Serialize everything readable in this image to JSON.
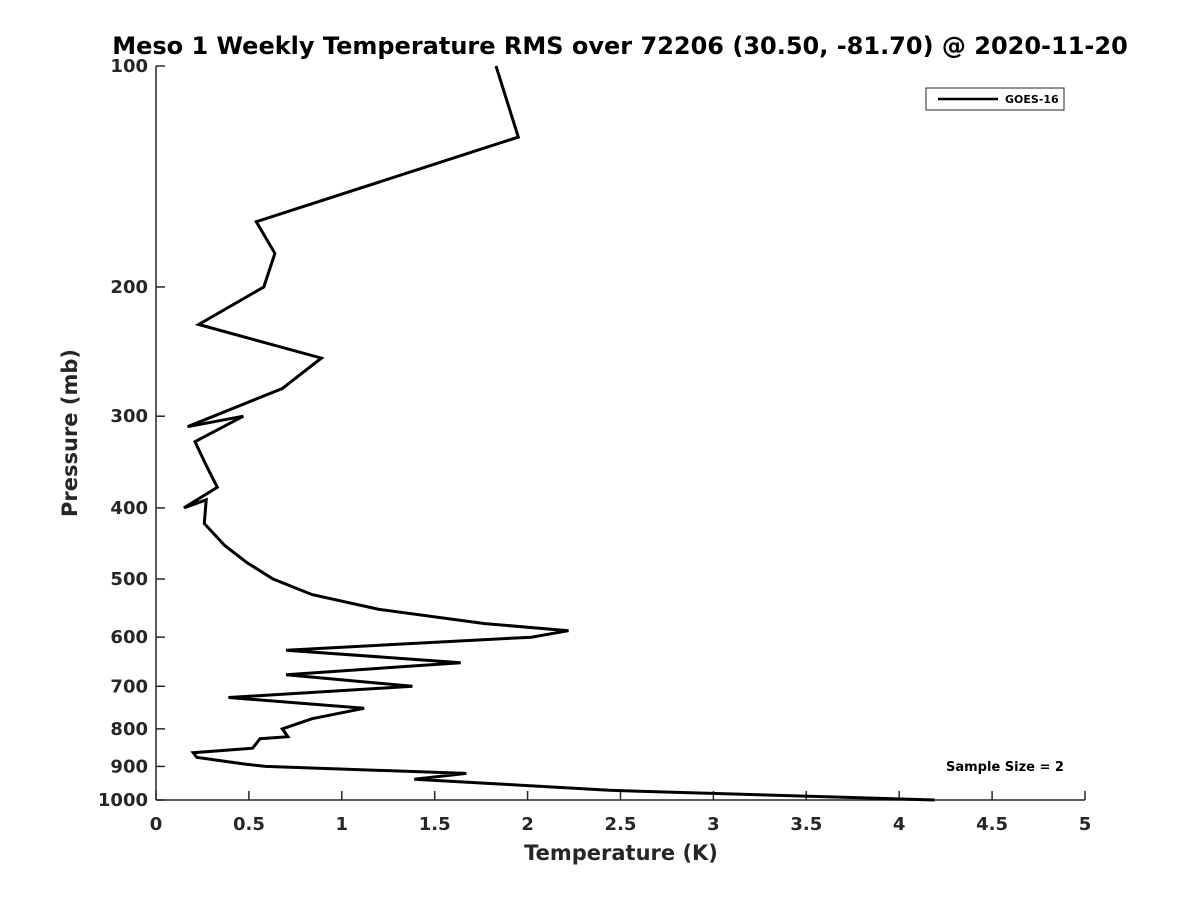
{
  "chart_data": {
    "type": "line",
    "title": "Meso 1 Weekly Temperature RMS over 72206 (30.50, -81.70) @ 2020-11-20",
    "xlabel": "Temperature (K)",
    "ylabel": "Pressure (mb)",
    "xlim": [
      0,
      5
    ],
    "ylim": [
      100,
      1000
    ],
    "y_scale": "log",
    "y_reversed": true,
    "grid": false,
    "legend_position": "top-right",
    "x_ticks": [
      "0",
      "0.5",
      "1",
      "1.5",
      "2",
      "2.5",
      "3",
      "3.5",
      "4",
      "4.5",
      "5"
    ],
    "y_ticks": [
      "100",
      "200",
      "300",
      "400",
      "500",
      "600",
      "700",
      "800",
      "900",
      "1000"
    ],
    "series": [
      {
        "name": "GOES-16",
        "color": "#000000",
        "points": [
          [
            1.83,
            100
          ],
          [
            1.95,
            125
          ],
          [
            0.54,
            163
          ],
          [
            0.64,
            180
          ],
          [
            0.58,
            200
          ],
          [
            0.23,
            225
          ],
          [
            0.89,
            250
          ],
          [
            0.68,
            275
          ],
          [
            0.17,
            310
          ],
          [
            0.47,
            300
          ],
          [
            0.21,
            325
          ],
          [
            0.27,
            350
          ],
          [
            0.33,
            375
          ],
          [
            0.15,
            400
          ],
          [
            0.27,
            390
          ],
          [
            0.26,
            420
          ],
          [
            0.37,
            450
          ],
          [
            0.49,
            475
          ],
          [
            0.63,
            500
          ],
          [
            0.84,
            525
          ],
          [
            1.2,
            550
          ],
          [
            1.77,
            575
          ],
          [
            2.22,
            588
          ],
          [
            2.02,
            600
          ],
          [
            0.7,
            625
          ],
          [
            1.64,
            650
          ],
          [
            0.7,
            675
          ],
          [
            1.38,
            700
          ],
          [
            0.39,
            725
          ],
          [
            1.12,
            750
          ],
          [
            0.84,
            775
          ],
          [
            0.68,
            800
          ],
          [
            0.71,
            820
          ],
          [
            0.56,
            825
          ],
          [
            0.52,
            850
          ],
          [
            0.2,
            862
          ],
          [
            0.22,
            875
          ],
          [
            0.47,
            893
          ],
          [
            0.59,
            900
          ],
          [
            1.67,
            920
          ],
          [
            1.39,
            937
          ],
          [
            1.81,
            950
          ],
          [
            2.44,
            970
          ],
          [
            4.19,
            1000
          ]
        ]
      }
    ],
    "annotation": "Sample Size = 2"
  }
}
